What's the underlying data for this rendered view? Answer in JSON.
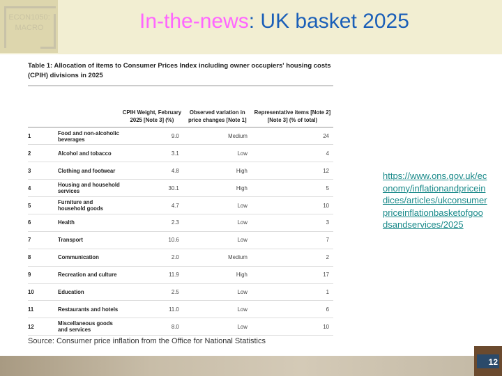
{
  "header": {
    "logo_text": "ECON1050: MACRO",
    "title_highlight": "In-the-news",
    "title_rest": ": UK basket 2025"
  },
  "table": {
    "caption": "Table 1: Allocation of items to Consumer Prices Index including owner occupiers' housing costs (CPIH) divisions in 2025",
    "columns": [
      "",
      "",
      "CPIH Weight, February 2025 [Note 3] (%)",
      "Observed variation in price changes [Note 1]",
      "Representative items [Note 2] [Note 3] (% of total)"
    ],
    "rows": [
      [
        "1",
        "Food and non-alcoholic beverages",
        "9.0",
        "Medium",
        "24"
      ],
      [
        "2",
        "Alcohol and tobacco",
        "3.1",
        "Low",
        "4"
      ],
      [
        "3",
        "Clothing and footwear",
        "4.8",
        "High",
        "12"
      ],
      [
        "4",
        "Housing and household services",
        "30.1",
        "High",
        "5"
      ],
      [
        "5",
        "Furniture and household goods",
        "4.7",
        "Low",
        "10"
      ],
      [
        "6",
        "Health",
        "2.3",
        "Low",
        "3"
      ],
      [
        "7",
        "Transport",
        "10.6",
        "Low",
        "7"
      ],
      [
        "8",
        "Communication",
        "2.0",
        "Medium",
        "2"
      ],
      [
        "9",
        "Recreation and culture",
        "11.9",
        "High",
        "17"
      ],
      [
        "10",
        "Education",
        "2.5",
        "Low",
        "1"
      ],
      [
        "11",
        "Restaurants and hotels",
        "11.0",
        "Low",
        "6"
      ],
      [
        "12",
        "Miscellaneous goods and services",
        "8.0",
        "Low",
        "10"
      ]
    ]
  },
  "source": "Source: Consumer price inflation from the Office for National Statistics",
  "link": "https://www.ons.gov.uk/economy/inflationandpriceindices/articles/ukconsumerpriceinflationbasketofgoodsandservices/2025",
  "page_number": "12"
}
